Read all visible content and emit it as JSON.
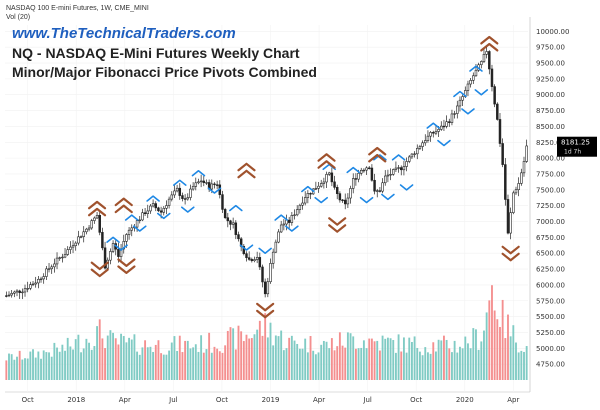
{
  "header": {
    "symbol_line": "NASDAQ 100 E-mini Futures, 1W, CME_MINI",
    "volume_line": "Vol (20)",
    "website": "www.TheTechnicalTraders.com",
    "title": "NQ - NASDAQ E-Mini Futures Weekly Chart",
    "subtitle": "Minor/Major Fibonacci Price Pivots Combined"
  },
  "colors": {
    "up": "#26a69a",
    "down": "#ef5350",
    "candle": "#222222",
    "minor_pivot": "#1e88e5",
    "major_pivot": "#a0522d",
    "vol_up": "#80cbc4",
    "vol_down": "#f48f8f",
    "price_tag": "#000000"
  },
  "chart_data": {
    "type": "candlestick",
    "title": "NQ - NASDAQ E-Mini Futures Weekly Chart",
    "subtitle": "Minor/Major Fibonacci Price Pivots Combined",
    "ylim": [
      4500,
      10100
    ],
    "y_ticks": [
      10000,
      9750,
      9500,
      9250,
      9000,
      8750,
      8500,
      8250,
      8000,
      7750,
      7500,
      7250,
      7000,
      6750,
      6500,
      6250,
      6000,
      5750,
      5500,
      5250,
      5000,
      4750
    ],
    "x_ticks": [
      "Oct",
      "2018",
      "Apr",
      "Jul",
      "Oct",
      "2019",
      "Apr",
      "Jul",
      "Oct",
      "2020",
      "Apr"
    ],
    "last_price": "8181.25",
    "last_tag_sub": "1d 7h",
    "price_anchors": [
      [
        0,
        5830
      ],
      [
        6,
        5920
      ],
      [
        12,
        6080
      ],
      [
        18,
        6350
      ],
      [
        22,
        6500
      ],
      [
        26,
        6700
      ],
      [
        30,
        6880
      ],
      [
        34,
        7100
      ],
      [
        37,
        6300
      ],
      [
        40,
        6650
      ],
      [
        42,
        6450
      ],
      [
        45,
        6800
      ],
      [
        48,
        6950
      ],
      [
        52,
        7150
      ],
      [
        55,
        7250
      ],
      [
        58,
        7150
      ],
      [
        61,
        7350
      ],
      [
        64,
        7500
      ],
      [
        67,
        7320
      ],
      [
        70,
        7550
      ],
      [
        73,
        7650
      ],
      [
        76,
        7550
      ],
      [
        79,
        7600
      ],
      [
        82,
        7050
      ],
      [
        85,
        6950
      ],
      [
        88,
        6600
      ],
      [
        91,
        6400
      ],
      [
        94,
        6450
      ],
      [
        97,
        5850
      ],
      [
        100,
        6550
      ],
      [
        103,
        6950
      ],
      [
        106,
        7000
      ],
      [
        109,
        7200
      ],
      [
        112,
        7400
      ],
      [
        115,
        7500
      ],
      [
        118,
        7620
      ],
      [
        121,
        7750
      ],
      [
        123,
        7500
      ],
      [
        125,
        7350
      ],
      [
        127,
        7250
      ],
      [
        130,
        7650
      ],
      [
        133,
        7820
      ],
      [
        136,
        7880
      ],
      [
        138,
        7450
      ],
      [
        140,
        7500
      ],
      [
        142,
        7700
      ],
      [
        145,
        7780
      ],
      [
        148,
        7850
      ],
      [
        151,
        8000
      ],
      [
        154,
        8150
      ],
      [
        157,
        8300
      ],
      [
        160,
        8400
      ],
      [
        163,
        8480
      ],
      [
        166,
        8600
      ],
      [
        169,
        8800
      ],
      [
        172,
        9050
      ],
      [
        175,
        9300
      ],
      [
        178,
        9500
      ],
      [
        180,
        9700
      ],
      [
        182,
        9150
      ],
      [
        184,
        8600
      ],
      [
        186,
        7900
      ],
      [
        188,
        6800
      ],
      [
        190,
        7450
      ],
      [
        192,
        7600
      ],
      [
        194,
        7950
      ],
      [
        195,
        8180
      ]
    ],
    "volume_anchors": [
      [
        0,
        4850
      ],
      [
        10,
        4900
      ],
      [
        22,
        5000
      ],
      [
        35,
        5250
      ],
      [
        40,
        5100
      ],
      [
        50,
        5050
      ],
      [
        60,
        5050
      ],
      [
        70,
        5050
      ],
      [
        80,
        5100
      ],
      [
        90,
        5200
      ],
      [
        97,
        5350
      ],
      [
        105,
        5100
      ],
      [
        120,
        5050
      ],
      [
        130,
        5150
      ],
      [
        140,
        5100
      ],
      [
        155,
        5050
      ],
      [
        170,
        5050
      ],
      [
        178,
        5200
      ],
      [
        182,
        5950
      ],
      [
        186,
        5450
      ],
      [
        190,
        5200
      ],
      [
        195,
        5000
      ]
    ],
    "minor_pivots": [
      {
        "idx": 40,
        "price": 6750,
        "dir": "up"
      },
      {
        "idx": 43,
        "price": 6550,
        "dir": "down"
      },
      {
        "idx": 47,
        "price": 7100,
        "dir": "up"
      },
      {
        "idx": 50,
        "price": 6850,
        "dir": "down"
      },
      {
        "idx": 55,
        "price": 7400,
        "dir": "up"
      },
      {
        "idx": 59,
        "price": 7050,
        "dir": "down"
      },
      {
        "idx": 65,
        "price": 7650,
        "dir": "up"
      },
      {
        "idx": 68,
        "price": 7150,
        "dir": "down"
      },
      {
        "idx": 72,
        "price": 7800,
        "dir": "up"
      },
      {
        "idx": 78,
        "price": 7450,
        "dir": "down"
      },
      {
        "idx": 86,
        "price": 7250,
        "dir": "up"
      },
      {
        "idx": 90,
        "price": 6550,
        "dir": "down"
      },
      {
        "idx": 97,
        "price": 6500,
        "dir": "down"
      },
      {
        "idx": 103,
        "price": 7100,
        "dir": "up"
      },
      {
        "idx": 107,
        "price": 6850,
        "dir": "down"
      },
      {
        "idx": 113,
        "price": 7550,
        "dir": "up"
      },
      {
        "idx": 118,
        "price": 7300,
        "dir": "down"
      },
      {
        "idx": 121,
        "price": 7900,
        "dir": "up"
      },
      {
        "idx": 130,
        "price": 7850,
        "dir": "up"
      },
      {
        "idx": 135,
        "price": 7300,
        "dir": "down"
      },
      {
        "idx": 140,
        "price": 8050,
        "dir": "up"
      },
      {
        "idx": 143,
        "price": 7350,
        "dir": "down"
      },
      {
        "idx": 147,
        "price": 8050,
        "dir": "up"
      },
      {
        "idx": 150,
        "price": 7500,
        "dir": "down"
      },
      {
        "idx": 160,
        "price": 8550,
        "dir": "up"
      },
      {
        "idx": 164,
        "price": 8200,
        "dir": "down"
      },
      {
        "idx": 170,
        "price": 9050,
        "dir": "up"
      },
      {
        "idx": 173,
        "price": 8700,
        "dir": "down"
      },
      {
        "idx": 176,
        "price": 9450,
        "dir": "up"
      },
      {
        "idx": 178,
        "price": 9000,
        "dir": "down"
      }
    ],
    "major_pivots": [
      {
        "idx": 34,
        "price": 7200,
        "dir": "up"
      },
      {
        "idx": 35,
        "price": 6250,
        "dir": "down"
      },
      {
        "idx": 44,
        "price": 7250,
        "dir": "up"
      },
      {
        "idx": 45,
        "price": 6300,
        "dir": "down"
      },
      {
        "idx": 90,
        "price": 7800,
        "dir": "up"
      },
      {
        "idx": 97,
        "price": 5600,
        "dir": "down"
      },
      {
        "idx": 120,
        "price": 7950,
        "dir": "up"
      },
      {
        "idx": 124,
        "price": 6950,
        "dir": "down"
      },
      {
        "idx": 139,
        "price": 8050,
        "dir": "up"
      },
      {
        "idx": 181,
        "price": 9800,
        "dir": "up"
      },
      {
        "idx": 189,
        "price": 6500,
        "dir": "down"
      }
    ]
  }
}
